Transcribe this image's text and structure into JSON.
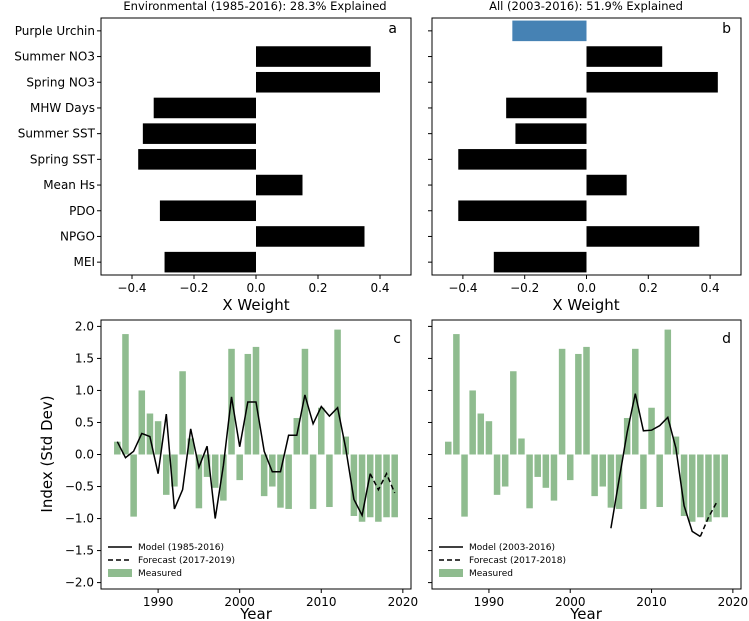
{
  "colors": {
    "bar_black": "#000000",
    "highlight": "#4682b4",
    "measured": "#8fbc8f"
  },
  "chart_data": [
    {
      "id": "a",
      "type": "bar",
      "orientation": "horizontal",
      "title": "Environmental (1985-2016): 28.3% Explained",
      "panel_label": "a",
      "xlabel": "X Weight",
      "xlim": [
        -0.5,
        0.5
      ],
      "xticks": [
        -0.4,
        -0.2,
        0.0,
        0.2,
        0.4
      ],
      "xtick_labels": [
        "−0.4",
        "−0.2",
        "0.0",
        "0.2",
        "0.4"
      ],
      "categories": [
        "Purple Urchin",
        "Summer NO3",
        "Spring NO3",
        "MHW Days",
        "Summer SST",
        "Spring SST",
        "Mean Hs",
        "PDO",
        "NPGO",
        "MEI"
      ],
      "values": [
        null,
        0.37,
        0.4,
        -0.33,
        -0.365,
        -0.38,
        0.15,
        -0.31,
        0.35,
        -0.295
      ],
      "colors": [
        "#4682b4",
        "#000000",
        "#000000",
        "#000000",
        "#000000",
        "#000000",
        "#000000",
        "#000000",
        "#000000",
        "#000000"
      ]
    },
    {
      "id": "b",
      "type": "bar",
      "orientation": "horizontal",
      "title": "All (2003-2016): 51.9% Explained",
      "panel_label": "b",
      "xlabel": "X Weight",
      "xlim": [
        -0.5,
        0.5
      ],
      "xticks": [
        -0.4,
        -0.2,
        0.0,
        0.2,
        0.4
      ],
      "xtick_labels": [
        "−0.4",
        "−0.2",
        "0.0",
        "0.2",
        "0.4"
      ],
      "categories": [
        "Purple Urchin",
        "Summer NO3",
        "Spring NO3",
        "MHW Days",
        "Summer SST",
        "Spring SST",
        "Mean Hs",
        "PDO",
        "NPGO",
        "MEI"
      ],
      "values": [
        -0.24,
        0.245,
        0.425,
        -0.26,
        -0.23,
        -0.415,
        0.13,
        -0.415,
        0.365,
        -0.3
      ],
      "colors": [
        "#4682b4",
        "#000000",
        "#000000",
        "#000000",
        "#000000",
        "#000000",
        "#000000",
        "#000000",
        "#000000",
        "#000000"
      ]
    },
    {
      "id": "c",
      "type": "bar+line",
      "panel_label": "c",
      "xlabel": "Year",
      "ylabel": "Index (Std Dev)",
      "xlim": [
        1983,
        2021
      ],
      "ylim": [
        -2.1,
        2.1
      ],
      "xticks": [
        1990,
        2000,
        2010,
        2020
      ],
      "yticks": [
        -2.0,
        -1.5,
        -1.0,
        -0.5,
        0.0,
        0.5,
        1.0,
        1.5,
        2.0
      ],
      "ytick_labels": [
        "−2.0",
        "−1.5",
        "−1.0",
        "−0.5",
        "0.0",
        "0.5",
        "1.0",
        "1.5",
        "2.0"
      ],
      "legend_position": "lower-left",
      "measured": {
        "name": "Measured",
        "x": [
          1985,
          1986,
          1987,
          1988,
          1989,
          1990,
          1991,
          1992,
          1993,
          1994,
          1995,
          1996,
          1997,
          1998,
          1999,
          2000,
          2001,
          2002,
          2003,
          2004,
          2005,
          2006,
          2007,
          2008,
          2009,
          2010,
          2011,
          2012,
          2013,
          2014,
          2015,
          2016,
          2017,
          2018,
          2019
        ],
        "y": [
          0.2,
          1.88,
          -0.97,
          1.0,
          0.64,
          0.52,
          -0.63,
          -0.5,
          1.3,
          0.25,
          -0.84,
          -0.35,
          -0.52,
          -0.72,
          1.65,
          -0.4,
          1.57,
          1.68,
          -0.65,
          -0.5,
          -0.83,
          -0.85,
          0.57,
          1.65,
          -0.85,
          0.73,
          -0.82,
          1.95,
          0.28,
          -0.96,
          -1.05,
          -0.98,
          -1.05,
          -0.98,
          -0.98
        ]
      },
      "series": [
        {
          "name": "Model (1985-2016)",
          "style": "solid",
          "x": [
            1985,
            1986,
            1987,
            1988,
            1989,
            1990,
            1991,
            1992,
            1993,
            1994,
            1995,
            1996,
            1997,
            1998,
            1999,
            2000,
            2001,
            2002,
            2003,
            2004,
            2005,
            2006,
            2007,
            2008,
            2009,
            2010,
            2011,
            2012,
            2013,
            2014,
            2015,
            2016
          ],
          "y": [
            0.2,
            -0.05,
            0.05,
            0.33,
            0.28,
            -0.3,
            0.63,
            -0.85,
            -0.55,
            0.4,
            -0.2,
            0.13,
            -1.0,
            -0.17,
            0.9,
            0.12,
            0.82,
            0.82,
            0.05,
            -0.27,
            -0.27,
            0.3,
            0.3,
            0.93,
            0.48,
            0.75,
            0.6,
            0.73,
            0.1,
            -0.7,
            -0.95,
            -0.3
          ]
        },
        {
          "name": "Forecast (2017-2019)",
          "style": "dashed",
          "x": [
            2016,
            2017,
            2018,
            2019
          ],
          "y": [
            -0.3,
            -0.55,
            -0.3,
            -0.6
          ]
        }
      ]
    },
    {
      "id": "d",
      "type": "bar+line",
      "panel_label": "d",
      "xlabel": "Year",
      "xlim": [
        1983,
        2021
      ],
      "ylim": [
        -2.1,
        2.1
      ],
      "xticks": [
        1990,
        2000,
        2010,
        2020
      ],
      "legend_position": "lower-left",
      "measured": {
        "name": "Measured",
        "x": [
          1985,
          1986,
          1987,
          1988,
          1989,
          1990,
          1991,
          1992,
          1993,
          1994,
          1995,
          1996,
          1997,
          1998,
          1999,
          2000,
          2001,
          2002,
          2003,
          2004,
          2005,
          2006,
          2007,
          2008,
          2009,
          2010,
          2011,
          2012,
          2013,
          2014,
          2015,
          2016,
          2017,
          2018,
          2019
        ],
        "y": [
          0.2,
          1.88,
          -0.97,
          1.0,
          0.64,
          0.52,
          -0.63,
          -0.5,
          1.3,
          0.25,
          -0.84,
          -0.35,
          -0.52,
          -0.72,
          1.65,
          -0.4,
          1.57,
          1.68,
          -0.65,
          -0.5,
          -0.83,
          -0.85,
          0.57,
          1.65,
          -0.85,
          0.73,
          -0.82,
          1.95,
          0.28,
          -0.96,
          -1.05,
          -0.98,
          -1.05,
          -0.98,
          -0.98
        ]
      },
      "series": [
        {
          "name": "Model (2003-2016)",
          "style": "solid",
          "x": [
            2005,
            2006,
            2007,
            2008,
            2009,
            2010,
            2011,
            2012,
            2013,
            2014,
            2015,
            2016
          ],
          "y": [
            -1.15,
            -0.4,
            0.35,
            0.95,
            0.37,
            0.38,
            0.45,
            0.58,
            0.1,
            -0.8,
            -1.2,
            -1.28
          ]
        },
        {
          "name": "Forecast (2017-2018)",
          "style": "dashed",
          "x": [
            2016,
            2017,
            2018
          ],
          "y": [
            -1.28,
            -0.98,
            -0.75
          ]
        }
      ]
    }
  ]
}
